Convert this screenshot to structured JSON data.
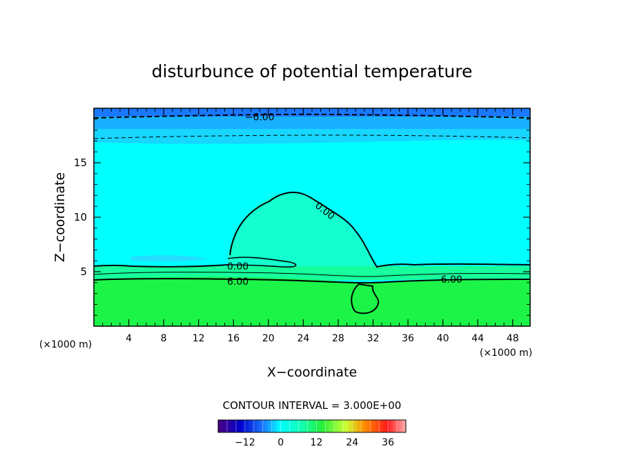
{
  "chart_data": {
    "type": "heatmap",
    "title": "disturbunce of potential temperature",
    "xlabel": "X−coordinate",
    "ylabel": "Z−coordinate",
    "x_unit_left": "(×1000 m)",
    "x_unit_right": "(×1000 m)",
    "xlim": [
      0,
      50
    ],
    "ylim": [
      0,
      20
    ],
    "xticks": [
      4,
      8,
      12,
      16,
      20,
      24,
      28,
      32,
      36,
      40,
      44,
      48
    ],
    "yticks": [
      5,
      10,
      15
    ],
    "contour_labels": [
      {
        "text": "−6.00",
        "x": 19,
        "y": 19.2
      },
      {
        "text": "0.00",
        "x": 26.5,
        "y": 10.6
      },
      {
        "text": "0.00",
        "x": 16.5,
        "y": 5.5
      },
      {
        "text": "6.00",
        "x": 16.5,
        "y": 4.1
      },
      {
        "text": "6.00",
        "x": 41,
        "y": 4.3
      }
    ],
    "contour_interval_text": "CONTOUR INTERVAL = 3.000E+00",
    "colorbar": {
      "ticks": [
        "−12",
        "0",
        "12",
        "24",
        "36"
      ],
      "min": -21,
      "max": 42
    },
    "colors": {
      "top_band": "#1a78ff",
      "upper_band": "#19b0ff",
      "cyan": "#00ffff",
      "teal": "#14ffd0",
      "green": "#1cf548",
      "bright_green": "#22ee3a"
    }
  }
}
